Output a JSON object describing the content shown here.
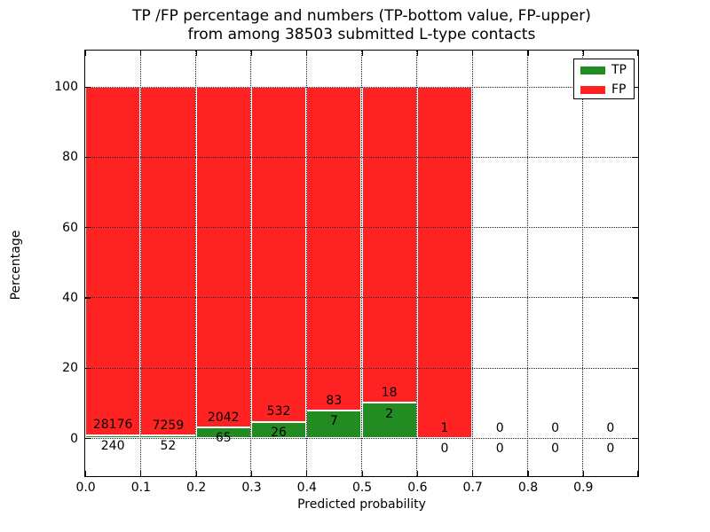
{
  "title": {
    "line1": "TP /FP percentage and numbers (TP-bottom value, FP-upper)",
    "line2": "from among 38503 submitted L-type contacts"
  },
  "axes": {
    "xlabel": "Predicted probability",
    "ylabel": "Percentage",
    "xtick_labels": [
      "0.0",
      "0.1",
      "0.2",
      "0.3",
      "0.4",
      "0.5",
      "0.6",
      "0.7",
      "0.8",
      "0.9"
    ],
    "ytick_values": [
      0,
      20,
      40,
      60,
      80,
      100
    ],
    "ytick_labels": [
      "0",
      "20",
      "40",
      "60",
      "80",
      "100"
    ],
    "xlim": [
      0.0,
      1.0
    ],
    "ylim": [
      -11,
      110
    ],
    "grid": "dotted black, drawn over bars"
  },
  "legend": {
    "position": "upper right",
    "entries": [
      {
        "label": "TP",
        "color": "#228b22",
        "swatch": "tp-swatch"
      },
      {
        "label": "FP",
        "color": "#ff2222",
        "swatch": "fp-swatch"
      }
    ]
  },
  "chart_data": {
    "type": "bar",
    "stacked": true,
    "normalized_to": 100,
    "title": "TP /FP percentage and numbers (TP-bottom value, FP-upper) from among 38503 submitted L-type contacts",
    "xlabel": "Predicted probability",
    "ylabel": "Percentage",
    "total_contacts": 38503,
    "bin_width": 0.1,
    "categories": [
      "0.0-0.1",
      "0.1-0.2",
      "0.2-0.3",
      "0.3-0.4",
      "0.4-0.5",
      "0.5-0.6",
      "0.6-0.7",
      "0.7-0.8",
      "0.8-0.9",
      "0.9-1.0"
    ],
    "series": [
      {
        "name": "TP",
        "color": "#228b22",
        "values": [
          240,
          52,
          65,
          26,
          7,
          2,
          0,
          0,
          0,
          0
        ]
      },
      {
        "name": "FP",
        "color": "#ff2222",
        "values": [
          28176,
          7259,
          2042,
          532,
          83,
          18,
          1,
          0,
          0,
          0
        ]
      }
    ],
    "tp_percent_of_bin": [
      0.84,
      0.71,
      3.09,
      4.66,
      7.78,
      10.0,
      0.0,
      0,
      0,
      0
    ],
    "fp_percent_of_bin": [
      99.16,
      99.29,
      96.91,
      95.34,
      92.22,
      90.0,
      100.0,
      0,
      0,
      0
    ],
    "label_note": "FP count printed above green segment top; TP count printed below green segment top (below axis when segment is tiny)"
  },
  "colors": {
    "tp_green": "#228b22",
    "fp_red": "#ff2222",
    "bar_edge": "#ffffff",
    "grid": "#222222",
    "spine": "#000000",
    "background": "#ffffff",
    "text": "#000000"
  }
}
